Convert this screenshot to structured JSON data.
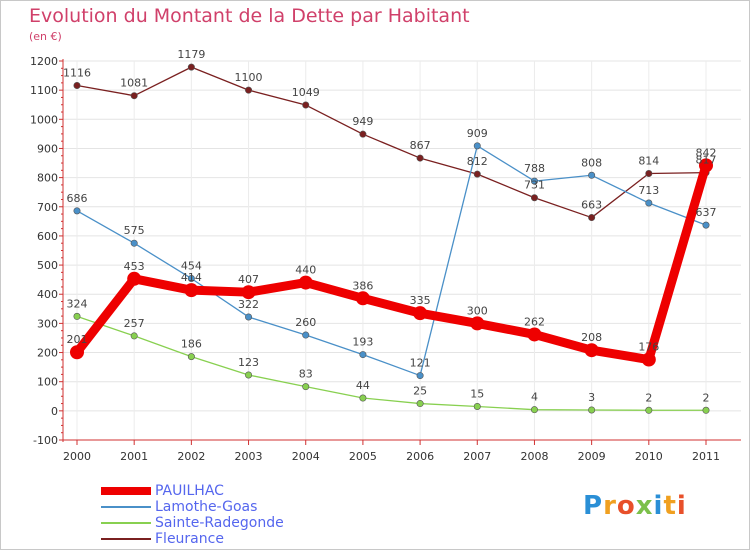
{
  "title": "Evolution du Montant de la Dette par Habitant",
  "subtitle": "(en €)",
  "logo": "Proxiti",
  "chart_data": {
    "type": "line",
    "x": [
      "2000",
      "2001",
      "2002",
      "2003",
      "2004",
      "2005",
      "2006",
      "2007",
      "2008",
      "2009",
      "2010",
      "2011"
    ],
    "ylim": [
      -100,
      1200
    ],
    "yticks": [
      -100,
      0,
      100,
      200,
      300,
      400,
      500,
      600,
      700,
      800,
      900,
      1000,
      1100,
      1200
    ],
    "grid": true,
    "legend_position": "bottom-left",
    "series": [
      {
        "name": "PAUILHAC",
        "color": "#ee0000",
        "values": [
          201,
          453,
          414,
          407,
          440,
          386,
          335,
          300,
          262,
          208,
          176,
          842
        ]
      },
      {
        "name": "Lamothe-Goas",
        "color": "#4a90c8",
        "values": [
          686,
          575,
          454,
          322,
          260,
          193,
          121,
          909,
          788,
          808,
          713,
          637
        ]
      },
      {
        "name": "Sainte-Radegonde",
        "color": "#88d050",
        "values": [
          324,
          257,
          186,
          123,
          83,
          44,
          25,
          15,
          4,
          3,
          2,
          2
        ]
      },
      {
        "name": "Fleurance",
        "color": "#7a2020",
        "values": [
          1116,
          1081,
          1179,
          1100,
          1049,
          949,
          867,
          812,
          731,
          663,
          814,
          817
        ]
      }
    ]
  }
}
